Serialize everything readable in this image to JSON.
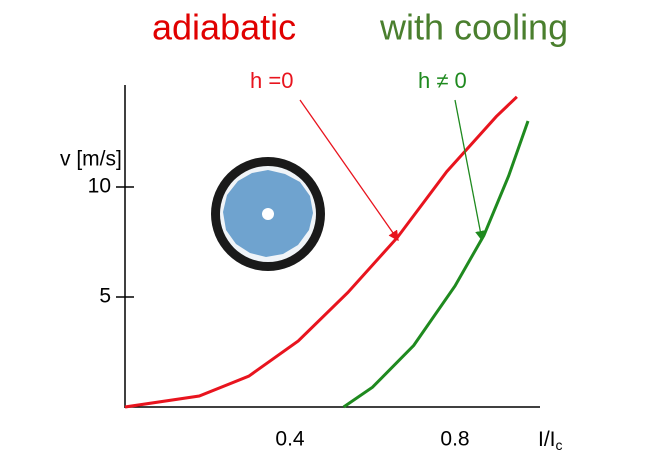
{
  "chart_data": {
    "type": "line",
    "annotations": [
      {
        "text": "adiabatic",
        "color": "#e00000"
      },
      {
        "text": "with cooling",
        "color": "#4a7f2e"
      }
    ],
    "ylabel": "v [m/s]",
    "xlabel": {
      "text": "I/I",
      "subscript": "c"
    },
    "xlim": [
      0,
      0.98
    ],
    "ylim": [
      0,
      14.6
    ],
    "xticks": [
      0.4,
      0.8
    ],
    "yticks": [
      5,
      10
    ],
    "series": [
      {
        "name": "h =0",
        "color": "#e8141e",
        "x": [
          0,
          0.18,
          0.3,
          0.42,
          0.54,
          0.66,
          0.78,
          0.9,
          0.95
        ],
        "y": [
          0,
          0.5,
          1.4,
          3.0,
          5.2,
          7.7,
          10.7,
          13.2,
          14.1
        ]
      },
      {
        "name": "h ≠ 0",
        "color": "#1f8a1f",
        "x": [
          0.53,
          0.6,
          0.7,
          0.8,
          0.87,
          0.93,
          0.977
        ],
        "y": [
          0,
          0.9,
          2.8,
          5.5,
          7.8,
          10.5,
          13.0
        ]
      }
    ]
  }
}
